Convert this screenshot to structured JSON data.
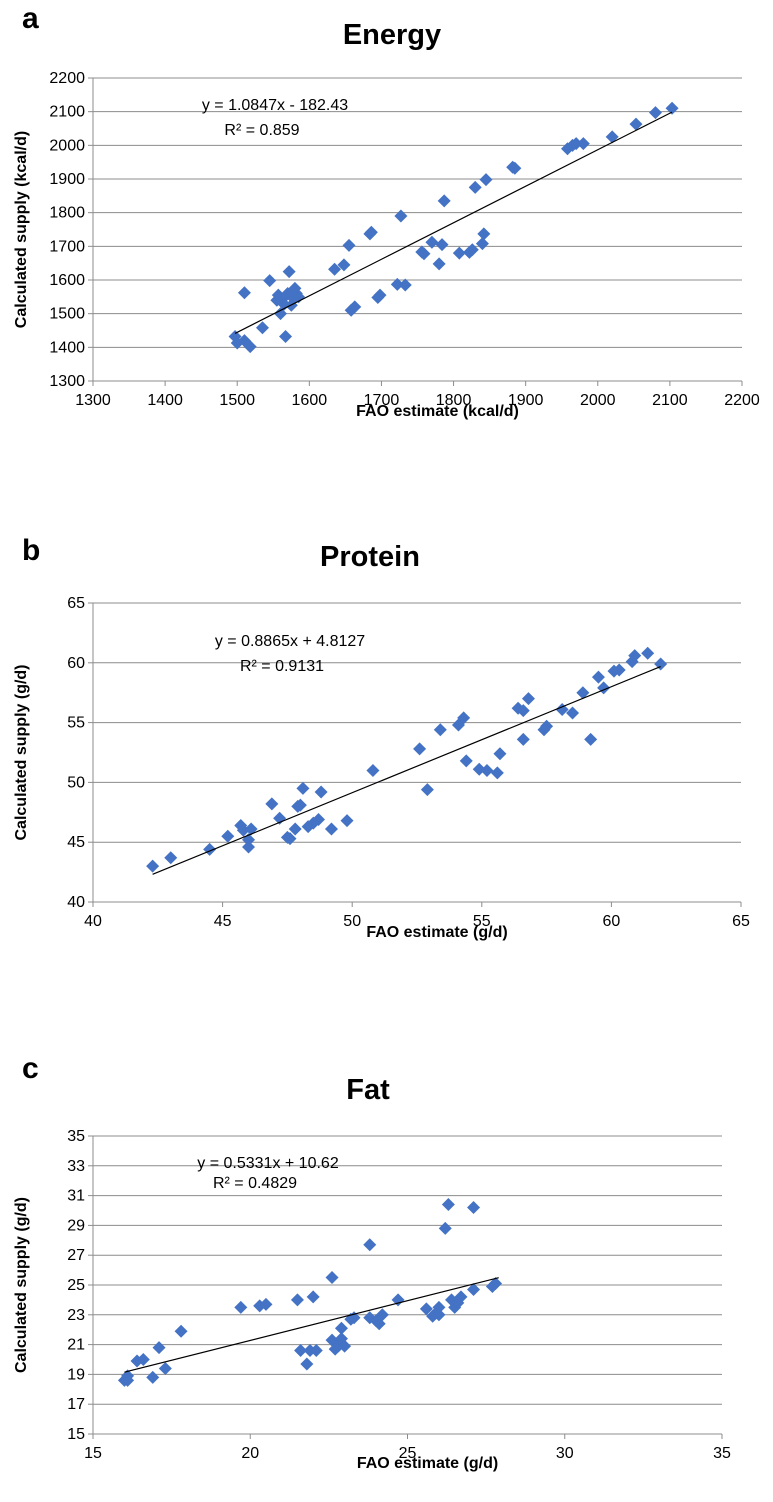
{
  "colors": {
    "marker": "#4472C4",
    "grid": "#8c8c8c",
    "trendline": "#000000"
  },
  "chart_data": [
    {
      "type": "scatter",
      "panel": "a",
      "title": "Energy",
      "xlabel": "FAO estimate (kcal/d)",
      "ylabel": "Calculated supply (kcal/d)",
      "xlim": [
        1300,
        2200
      ],
      "ylim": [
        1300,
        2200
      ],
      "xticks": [
        1300,
        1400,
        1500,
        1600,
        1700,
        1800,
        1900,
        2000,
        2100,
        2200
      ],
      "yticks": [
        1300,
        1400,
        1500,
        1600,
        1700,
        1800,
        1900,
        2000,
        2100,
        2200
      ],
      "grid": "horizontal",
      "equation": "y = 1.0847x - 182.43",
      "r_squared": "R² = 0.859",
      "trendline": {
        "slope": 1.0847,
        "intercept": -182.43,
        "x_range": [
          1497,
          2103
        ]
      },
      "points": [
        [
          1497,
          1432
        ],
        [
          1500,
          1413
        ],
        [
          1510,
          1420
        ],
        [
          1510,
          1562
        ],
        [
          1518,
          1402
        ],
        [
          1535,
          1458
        ],
        [
          1545,
          1598
        ],
        [
          1555,
          1540
        ],
        [
          1557,
          1555
        ],
        [
          1560,
          1500
        ],
        [
          1562,
          1542
        ],
        [
          1565,
          1528
        ],
        [
          1567,
          1432
        ],
        [
          1570,
          1560
        ],
        [
          1572,
          1625
        ],
        [
          1575,
          1525
        ],
        [
          1578,
          1545
        ],
        [
          1580,
          1575
        ],
        [
          1582,
          1560
        ],
        [
          1585,
          1550
        ],
        [
          1635,
          1632
        ],
        [
          1648,
          1645
        ],
        [
          1655,
          1703
        ],
        [
          1658,
          1510
        ],
        [
          1663,
          1520
        ],
        [
          1684,
          1737
        ],
        [
          1686,
          1742
        ],
        [
          1695,
          1548
        ],
        [
          1698,
          1555
        ],
        [
          1722,
          1587
        ],
        [
          1727,
          1790
        ],
        [
          1733,
          1585
        ],
        [
          1756,
          1683
        ],
        [
          1759,
          1678
        ],
        [
          1770,
          1712
        ],
        [
          1780,
          1648
        ],
        [
          1784,
          1705
        ],
        [
          1787,
          1835
        ],
        [
          1808,
          1680
        ],
        [
          1822,
          1682
        ],
        [
          1826,
          1690
        ],
        [
          1830,
          1875
        ],
        [
          1840,
          1708
        ],
        [
          1842,
          1737
        ],
        [
          1845,
          1898
        ],
        [
          1882,
          1935
        ],
        [
          1885,
          1932
        ],
        [
          1958,
          1990
        ],
        [
          1965,
          2000
        ],
        [
          1970,
          2005
        ],
        [
          1980,
          2005
        ],
        [
          2020,
          2025
        ],
        [
          2053,
          2063
        ],
        [
          2080,
          2097
        ],
        [
          2103,
          2110
        ]
      ]
    },
    {
      "type": "scatter",
      "panel": "b",
      "title": "Protein",
      "xlabel": "FAO estimate (g/d)",
      "ylabel": "Calculated supply (g/d)",
      "xlim": [
        40,
        65
      ],
      "ylim": [
        40,
        65
      ],
      "xticks": [
        40,
        45,
        50,
        55,
        60,
        65
      ],
      "yticks": [
        40,
        45,
        50,
        55,
        60,
        65
      ],
      "grid": "horizontal",
      "equation": "y = 0.8865x + 4.8127",
      "r_squared": "R² = 0.9131",
      "trendline": {
        "slope": 0.8865,
        "intercept": 4.8127,
        "x_range": [
          42.3,
          61.9
        ]
      },
      "points": [
        [
          42.3,
          43.0
        ],
        [
          43.0,
          43.7
        ],
        [
          44.5,
          44.4
        ],
        [
          45.2,
          45.5
        ],
        [
          45.7,
          46.4
        ],
        [
          45.8,
          46.0
        ],
        [
          46.0,
          45.2
        ],
        [
          46.0,
          44.6
        ],
        [
          46.1,
          46.1
        ],
        [
          46.9,
          48.2
        ],
        [
          47.2,
          47.0
        ],
        [
          47.5,
          45.4
        ],
        [
          47.6,
          45.3
        ],
        [
          47.8,
          46.1
        ],
        [
          47.9,
          48.0
        ],
        [
          48.0,
          48.1
        ],
        [
          48.1,
          49.5
        ],
        [
          48.3,
          46.3
        ],
        [
          48.5,
          46.6
        ],
        [
          48.7,
          46.9
        ],
        [
          48.8,
          49.2
        ],
        [
          49.2,
          46.1
        ],
        [
          49.8,
          46.8
        ],
        [
          50.8,
          51.0
        ],
        [
          52.6,
          52.8
        ],
        [
          52.9,
          49.4
        ],
        [
          53.4,
          54.4
        ],
        [
          54.1,
          54.8
        ],
        [
          54.3,
          55.4
        ],
        [
          54.4,
          51.8
        ],
        [
          54.9,
          51.1
        ],
        [
          55.2,
          51.0
        ],
        [
          55.6,
          50.8
        ],
        [
          55.7,
          52.4
        ],
        [
          56.4,
          56.2
        ],
        [
          56.6,
          53.6
        ],
        [
          56.6,
          56.0
        ],
        [
          56.8,
          57.0
        ],
        [
          57.4,
          54.4
        ],
        [
          57.5,
          54.7
        ],
        [
          58.1,
          56.1
        ],
        [
          58.5,
          55.8
        ],
        [
          58.9,
          57.5
        ],
        [
          59.2,
          53.6
        ],
        [
          59.5,
          58.8
        ],
        [
          59.7,
          57.9
        ],
        [
          60.1,
          59.3
        ],
        [
          60.3,
          59.4
        ],
        [
          60.8,
          60.1
        ],
        [
          60.9,
          60.6
        ],
        [
          61.4,
          60.8
        ],
        [
          61.9,
          59.9
        ]
      ]
    },
    {
      "type": "scatter",
      "panel": "c",
      "title": "Fat",
      "xlabel": "FAO estimate (g/d)",
      "ylabel": "Calculated supply (g/d)",
      "xlim": [
        15,
        35
      ],
      "ylim": [
        15,
        35
      ],
      "xticks": [
        15,
        20,
        25,
        30,
        35
      ],
      "yticks": [
        15,
        17,
        19,
        21,
        23,
        25,
        27,
        29,
        31,
        33,
        35
      ],
      "grid": "horizontal",
      "equation": "y = 0.5331x + 10.62",
      "r_squared": "R² = 0.4829",
      "trendline": {
        "slope": 0.5331,
        "intercept": 10.62,
        "x_range": [
          16.0,
          27.9
        ]
      },
      "points": [
        [
          16.0,
          18.6
        ],
        [
          16.1,
          18.9
        ],
        [
          16.1,
          18.6
        ],
        [
          16.4,
          19.9
        ],
        [
          16.6,
          20.0
        ],
        [
          16.9,
          18.8
        ],
        [
          17.1,
          20.8
        ],
        [
          17.3,
          19.4
        ],
        [
          17.8,
          21.9
        ],
        [
          19.7,
          23.5
        ],
        [
          20.3,
          23.6
        ],
        [
          20.5,
          23.7
        ],
        [
          21.5,
          24.0
        ],
        [
          21.6,
          20.6
        ],
        [
          21.8,
          19.7
        ],
        [
          21.9,
          20.6
        ],
        [
          22.0,
          24.2
        ],
        [
          22.1,
          20.6
        ],
        [
          22.6,
          21.3
        ],
        [
          22.6,
          25.5
        ],
        [
          22.7,
          20.7
        ],
        [
          22.8,
          20.9
        ],
        [
          22.9,
          21.4
        ],
        [
          22.9,
          22.1
        ],
        [
          23.0,
          20.9
        ],
        [
          23.2,
          22.7
        ],
        [
          23.3,
          22.8
        ],
        [
          23.8,
          22.8
        ],
        [
          23.8,
          27.7
        ],
        [
          24.0,
          22.6
        ],
        [
          24.1,
          22.4
        ],
        [
          24.2,
          23.0
        ],
        [
          24.7,
          24.0
        ],
        [
          25.6,
          23.4
        ],
        [
          25.8,
          22.9
        ],
        [
          25.9,
          23.1
        ],
        [
          26.0,
          23.5
        ],
        [
          26.0,
          23.0
        ],
        [
          26.2,
          28.8
        ],
        [
          26.3,
          30.4
        ],
        [
          26.4,
          24.0
        ],
        [
          26.5,
          23.5
        ],
        [
          26.6,
          23.8
        ],
        [
          26.7,
          24.2
        ],
        [
          27.1,
          30.2
        ],
        [
          27.1,
          24.7
        ],
        [
          27.7,
          24.9
        ],
        [
          27.8,
          25.1
        ]
      ]
    }
  ]
}
